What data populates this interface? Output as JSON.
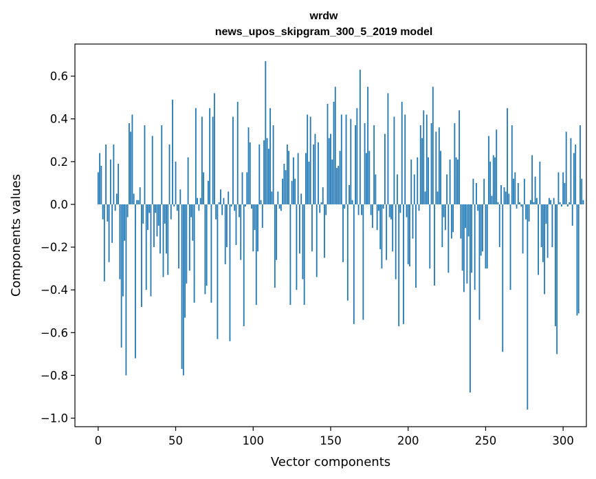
{
  "chart_data": {
    "type": "bar",
    "title": "wrdw",
    "subtitle": "news_upos_skipgram_300_5_2019 model",
    "xlabel": "Vector components",
    "ylabel": "Components values",
    "xlim": [
      -15,
      315
    ],
    "ylim": [
      -1.04,
      0.75
    ],
    "x_ticks": [
      0,
      50,
      100,
      150,
      200,
      250,
      300
    ],
    "y_ticks": [
      0.6,
      0.4,
      0.2,
      0.0,
      -0.2,
      -0.4,
      -0.6,
      -0.8,
      -1.0
    ],
    "y_tick_labels": [
      "0.6",
      "0.4",
      "0.2",
      "0.0",
      "−0.2",
      "−0.4",
      "−0.6",
      "−0.8",
      "−1.0"
    ],
    "bar_color": "#1f77b4",
    "grid": false,
    "legend": "none",
    "values": [
      0.15,
      0.24,
      0.18,
      -0.07,
      -0.36,
      0.28,
      -0.08,
      -0.27,
      0.21,
      -0.18,
      0.28,
      -0.03,
      0.05,
      0.19,
      -0.35,
      -0.67,
      -0.43,
      -0.17,
      -0.8,
      -0.06,
      0.38,
      0.34,
      0.42,
      0.05,
      -0.72,
      0.02,
      0.02,
      0.08,
      -0.48,
      -0.09,
      0.37,
      -0.4,
      -0.12,
      -0.04,
      -0.43,
      0.32,
      -0.2,
      -0.04,
      -0.15,
      -0.1,
      -0.23,
      0.37,
      -0.34,
      -0.09,
      -0.23,
      -0.33,
      0.28,
      -0.07,
      0.49,
      -0.01,
      0.2,
      -0.03,
      -0.3,
      0.07,
      -0.77,
      -0.8,
      -0.53,
      -0.37,
      0.22,
      -0.31,
      -0.06,
      -0.17,
      -0.46,
      0.45,
      0.03,
      -0.03,
      0.03,
      0.41,
      0.15,
      -0.42,
      -0.38,
      0.11,
      0.45,
      -0.46,
      0.41,
      0.52,
      -0.07,
      -0.63,
      0.01,
      0.07,
      -0.05,
      0.03,
      -0.28,
      -0.2,
      0.06,
      -0.64,
      -0.01,
      0.41,
      -0.03,
      -0.19,
      0.48,
      -0.06,
      -0.26,
      0.15,
      -0.57,
      -0.01,
      0.15,
      0.36,
      0.29,
      -0.02,
      -0.22,
      -0.12,
      -0.47,
      -0.22,
      0.28,
      0.02,
      -0.11,
      0.3,
      0.67,
      0.31,
      0.26,
      0.45,
      0.06,
      0.37,
      -0.39,
      -0.26,
      0.06,
      -0.02,
      -0.03,
      0.12,
      0.19,
      0.16,
      0.28,
      0.25,
      -0.47,
      0.11,
      0.22,
      0.12,
      -0.4,
      0.24,
      -0.23,
      0.05,
      -0.35,
      -0.47,
      0.24,
      0.42,
      0.2,
      0.41,
      -0.22,
      0.28,
      0.33,
      -0.34,
      0.29,
      -0.04,
      0.01,
      0.08,
      -0.25,
      -0.05,
      0.47,
      0.31,
      0.33,
      0.21,
      0.48,
      0.55,
      0.17,
      0.18,
      0.25,
      0.42,
      -0.27,
      -0.02,
      0.42,
      -0.45,
      0.09,
      0.4,
      0.02,
      -0.56,
      0.37,
      0.45,
      -0.05,
      0.63,
      -0.05,
      -0.54,
      0.38,
      0.24,
      0.55,
      0.25,
      -0.05,
      -0.11,
      0.37,
      0.14,
      -0.12,
      -0.03,
      -0.21,
      -0.3,
      -0.02,
      0.33,
      -0.26,
      0.52,
      -0.06,
      -0.07,
      -0.22,
      0.41,
      -0.35,
      0.14,
      -0.57,
      -0.04,
      0.48,
      -0.56,
      0.42,
      -0.06,
      -0.28,
      -0.29,
      0.21,
      -0.16,
      0.14,
      -0.39,
      0.22,
      -0.03,
      0.37,
      0.31,
      0.44,
      0.06,
      0.42,
      0.22,
      -0.3,
      0.38,
      0.55,
      -0.38,
      0.34,
      0.06,
      0.36,
      0.25,
      -0.2,
      -0.06,
      -0.12,
      0.14,
      -0.32,
      0.21,
      -0.16,
      -0.13,
      0.38,
      0.22,
      0.21,
      0.44,
      -0.16,
      -0.31,
      -0.41,
      -0.11,
      -0.37,
      -0.15,
      -0.88,
      -0.32,
      0.12,
      -0.4,
      0.1,
      -0.03,
      -0.54,
      -0.24,
      -0.22,
      0.12,
      -0.3,
      -0.3,
      0.32,
      0.2,
      0.04,
      0.23,
      0.22,
      0.35,
      0.01,
      -0.2,
      0.09,
      -0.69,
      0.08,
      0.06,
      0.45,
      0.05,
      -0.4,
      0.37,
      0.12,
      0.15,
      -0.02,
      0.1,
      0.01,
      -0.01,
      -0.23,
      0.12,
      -0.07,
      -0.96,
      -0.08,
      0.02,
      0.23,
      0.01,
      0.13,
      0.03,
      -0.33,
      0.2,
      -0.2,
      -0.27,
      -0.42,
      -0.09,
      -0.25,
      0.03,
      0.02,
      -0.2,
      0.03,
      -0.57,
      -0.7,
      0.15,
      0.01,
      -0.01,
      0.15,
      0.1,
      0.34,
      -0.01,
      0.01,
      0.31,
      -0.1,
      0.24,
      0.28,
      -0.52,
      -0.51,
      0.37,
      0.12,
      0.02
    ]
  }
}
